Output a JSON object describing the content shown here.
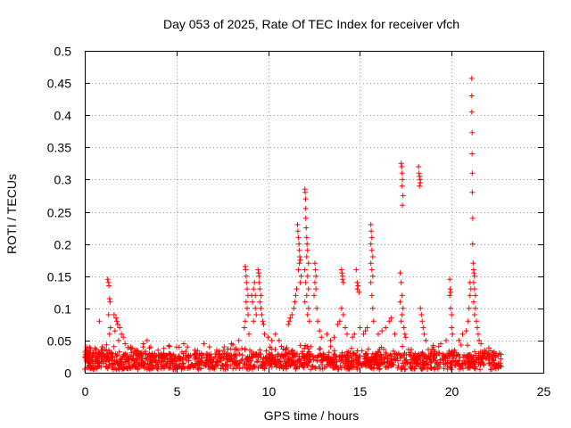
{
  "chart_data": {
    "type": "scatter",
    "title": "Day 053 of 2025, Rate Of TEC Index for receiver vfch",
    "xlabel": "GPS time / hours",
    "ylabel": "ROTI / TECUs",
    "xlim": [
      0,
      25
    ],
    "ylim": [
      0,
      0.5
    ],
    "xticks": [
      0,
      5,
      10,
      15,
      20,
      25
    ],
    "xtick_labels": [
      "0",
      "5",
      "10",
      "15",
      "20",
      "25"
    ],
    "yticks": [
      0,
      0.05,
      0.1,
      0.15,
      0.2,
      0.25,
      0.3,
      0.35,
      0.4,
      0.45,
      0.5
    ],
    "ytick_labels": [
      "0",
      "0.05",
      "0.1",
      "0.15",
      "0.2",
      "0.25",
      "0.3",
      "0.35",
      "0.4",
      "0.45",
      "0.5"
    ],
    "grid": true,
    "marker": "+",
    "series_color": "#ff0000",
    "baseline": {
      "x_range": [
        0.0,
        22.7
      ],
      "typical_range": [
        0.005,
        0.03
      ]
    },
    "series": [
      {
        "name": "ROTI",
        "points": [
          [
            0.1,
            0.04
          ],
          [
            0.15,
            0.035
          ],
          [
            0.2,
            0.03
          ],
          [
            0.3,
            0.038
          ],
          [
            0.05,
            0.028
          ],
          [
            0.6,
            0.03
          ],
          [
            0.9,
            0.035
          ],
          [
            1.0,
            0.028
          ],
          [
            0.8,
            0.08
          ],
          [
            1.25,
            0.145
          ],
          [
            1.3,
            0.14
          ],
          [
            1.32,
            0.135
          ],
          [
            1.35,
            0.115
          ],
          [
            1.38,
            0.11
          ],
          [
            1.3,
            0.09
          ],
          [
            1.4,
            0.07
          ],
          [
            1.35,
            0.06
          ],
          [
            1.6,
            0.09
          ],
          [
            1.7,
            0.085
          ],
          [
            1.75,
            0.08
          ],
          [
            1.8,
            0.075
          ],
          [
            1.9,
            0.07
          ],
          [
            1.65,
            0.065
          ],
          [
            2.0,
            0.06
          ],
          [
            2.1,
            0.055
          ],
          [
            1.85,
            0.05
          ],
          [
            2.2,
            0.045
          ],
          [
            2.5,
            0.04
          ],
          [
            2.8,
            0.035
          ],
          [
            3.2,
            0.045
          ],
          [
            3.4,
            0.05
          ],
          [
            3.0,
            0.03
          ],
          [
            3.6,
            0.04
          ],
          [
            4.0,
            0.035
          ],
          [
            4.3,
            0.03
          ],
          [
            5.4,
            0.045
          ],
          [
            5.6,
            0.04
          ],
          [
            6.0,
            0.035
          ],
          [
            6.5,
            0.045
          ],
          [
            6.8,
            0.04
          ],
          [
            7.2,
            0.035
          ],
          [
            7.6,
            0.04
          ],
          [
            8.0,
            0.045
          ],
          [
            8.4,
            0.05
          ],
          [
            8.75,
            0.165
          ],
          [
            8.78,
            0.16
          ],
          [
            8.8,
            0.15
          ],
          [
            8.82,
            0.14
          ],
          [
            8.85,
            0.13
          ],
          [
            8.9,
            0.12
          ],
          [
            8.8,
            0.11
          ],
          [
            8.85,
            0.1
          ],
          [
            8.9,
            0.09
          ],
          [
            8.75,
            0.08
          ],
          [
            8.7,
            0.07
          ],
          [
            8.95,
            0.06
          ],
          [
            9.1,
            0.12
          ],
          [
            9.15,
            0.11
          ],
          [
            9.2,
            0.13
          ],
          [
            9.25,
            0.14
          ],
          [
            9.3,
            0.12
          ],
          [
            9.3,
            0.1
          ],
          [
            9.35,
            0.09
          ],
          [
            9.2,
            0.08
          ],
          [
            9.45,
            0.16
          ],
          [
            9.48,
            0.155
          ],
          [
            9.5,
            0.15
          ],
          [
            9.5,
            0.14
          ],
          [
            9.55,
            0.13
          ],
          [
            9.6,
            0.12
          ],
          [
            9.55,
            0.11
          ],
          [
            9.6,
            0.1
          ],
          [
            9.65,
            0.09
          ],
          [
            9.7,
            0.08
          ],
          [
            9.75,
            0.075
          ],
          [
            9.8,
            0.06
          ],
          [
            10.0,
            0.055
          ],
          [
            10.2,
            0.05
          ],
          [
            10.4,
            0.06
          ],
          [
            10.6,
            0.05
          ],
          [
            11.1,
            0.075
          ],
          [
            11.15,
            0.08
          ],
          [
            11.2,
            0.085
          ],
          [
            11.3,
            0.09
          ],
          [
            11.4,
            0.1
          ],
          [
            11.45,
            0.11
          ],
          [
            11.5,
            0.12
          ],
          [
            11.55,
            0.13
          ],
          [
            11.6,
            0.23
          ],
          [
            11.62,
            0.22
          ],
          [
            11.65,
            0.21
          ],
          [
            11.68,
            0.2
          ],
          [
            11.7,
            0.19
          ],
          [
            11.72,
            0.18
          ],
          [
            11.75,
            0.175
          ],
          [
            11.7,
            0.17
          ],
          [
            11.65,
            0.16
          ],
          [
            11.8,
            0.15
          ],
          [
            11.75,
            0.14
          ],
          [
            12.0,
            0.285
          ],
          [
            12.02,
            0.28
          ],
          [
            12.04,
            0.27
          ],
          [
            12.05,
            0.255
          ],
          [
            12.05,
            0.24
          ],
          [
            12.07,
            0.225
          ],
          [
            12.1,
            0.21
          ],
          [
            12.12,
            0.2
          ],
          [
            12.15,
            0.19
          ],
          [
            12.1,
            0.18
          ],
          [
            12.2,
            0.17
          ],
          [
            12.0,
            0.16
          ],
          [
            12.15,
            0.15
          ],
          [
            12.05,
            0.14
          ],
          [
            12.2,
            0.13
          ],
          [
            12.1,
            0.12
          ],
          [
            12.0,
            0.11
          ],
          [
            12.2,
            0.1
          ],
          [
            12.15,
            0.09
          ],
          [
            12.25,
            0.08
          ],
          [
            12.55,
            0.17
          ],
          [
            12.58,
            0.16
          ],
          [
            12.6,
            0.15
          ],
          [
            12.55,
            0.14
          ],
          [
            12.6,
            0.13
          ],
          [
            12.5,
            0.12
          ],
          [
            12.65,
            0.1
          ],
          [
            12.7,
            0.08
          ],
          [
            12.8,
            0.065
          ],
          [
            12.9,
            0.055
          ],
          [
            13.2,
            0.06
          ],
          [
            13.4,
            0.05
          ],
          [
            13.6,
            0.055
          ],
          [
            13.8,
            0.075
          ],
          [
            13.9,
            0.08
          ],
          [
            14.0,
            0.16
          ],
          [
            14.02,
            0.155
          ],
          [
            14.05,
            0.15
          ],
          [
            14.05,
            0.145
          ],
          [
            14.1,
            0.14
          ],
          [
            14.0,
            0.1
          ],
          [
            14.1,
            0.09
          ],
          [
            14.2,
            0.07
          ],
          [
            14.3,
            0.06
          ],
          [
            14.6,
            0.055
          ],
          [
            14.7,
            0.06
          ],
          [
            14.8,
            0.16
          ],
          [
            14.85,
            0.14
          ],
          [
            14.9,
            0.135
          ],
          [
            14.85,
            0.13
          ],
          [
            14.95,
            0.125
          ],
          [
            15.0,
            0.07
          ],
          [
            15.2,
            0.06
          ],
          [
            15.3,
            0.065
          ],
          [
            15.4,
            0.07
          ],
          [
            15.6,
            0.23
          ],
          [
            15.62,
            0.22
          ],
          [
            15.65,
            0.21
          ],
          [
            15.6,
            0.2
          ],
          [
            15.65,
            0.19
          ],
          [
            15.7,
            0.18
          ],
          [
            15.6,
            0.17
          ],
          [
            15.65,
            0.16
          ],
          [
            15.7,
            0.15
          ],
          [
            15.6,
            0.14
          ],
          [
            15.65,
            0.12
          ],
          [
            15.7,
            0.1
          ],
          [
            15.75,
            0.08
          ],
          [
            16.0,
            0.06
          ],
          [
            16.2,
            0.065
          ],
          [
            16.4,
            0.07
          ],
          [
            16.6,
            0.08
          ],
          [
            16.7,
            0.085
          ],
          [
            16.9,
            0.06
          ],
          [
            17.25,
            0.325
          ],
          [
            17.28,
            0.32
          ],
          [
            17.3,
            0.31
          ],
          [
            17.32,
            0.3
          ],
          [
            17.3,
            0.29
          ],
          [
            17.35,
            0.275
          ],
          [
            17.32,
            0.26
          ],
          [
            17.2,
            0.155
          ],
          [
            17.25,
            0.14
          ],
          [
            17.3,
            0.12
          ],
          [
            17.2,
            0.11
          ],
          [
            17.35,
            0.1
          ],
          [
            17.3,
            0.09
          ],
          [
            17.25,
            0.08
          ],
          [
            17.4,
            0.07
          ],
          [
            17.45,
            0.06
          ],
          [
            17.5,
            0.055
          ],
          [
            18.2,
            0.32
          ],
          [
            18.22,
            0.31
          ],
          [
            18.25,
            0.305
          ],
          [
            18.28,
            0.3
          ],
          [
            18.3,
            0.295
          ],
          [
            18.25,
            0.29
          ],
          [
            18.3,
            0.1
          ],
          [
            18.35,
            0.09
          ],
          [
            18.4,
            0.08
          ],
          [
            18.45,
            0.07
          ],
          [
            18.5,
            0.06
          ],
          [
            18.6,
            0.05
          ],
          [
            19.0,
            0.04
          ],
          [
            19.4,
            0.045
          ],
          [
            19.7,
            0.05
          ],
          [
            19.9,
            0.145
          ],
          [
            19.92,
            0.13
          ],
          [
            19.95,
            0.125
          ],
          [
            19.9,
            0.12
          ],
          [
            19.95,
            0.1
          ],
          [
            20.0,
            0.09
          ],
          [
            20.0,
            0.07
          ],
          [
            20.05,
            0.06
          ],
          [
            20.4,
            0.05
          ],
          [
            20.6,
            0.06
          ],
          [
            20.8,
            0.065
          ],
          [
            20.9,
            0.08
          ],
          [
            20.95,
            0.1
          ],
          [
            21.0,
            0.12
          ],
          [
            21.05,
            0.13
          ],
          [
            21.0,
            0.14
          ],
          [
            21.1,
            0.457
          ],
          [
            21.1,
            0.43
          ],
          [
            21.1,
            0.405
          ],
          [
            21.12,
            0.373
          ],
          [
            21.12,
            0.34
          ],
          [
            21.13,
            0.31
          ],
          [
            21.13,
            0.28
          ],
          [
            21.15,
            0.24
          ],
          [
            21.15,
            0.2
          ],
          [
            21.17,
            0.17
          ],
          [
            21.2,
            0.16
          ],
          [
            21.22,
            0.155
          ],
          [
            21.25,
            0.15
          ],
          [
            21.2,
            0.14
          ],
          [
            21.25,
            0.13
          ],
          [
            21.3,
            0.12
          ],
          [
            21.2,
            0.11
          ],
          [
            21.3,
            0.1
          ],
          [
            21.25,
            0.09
          ],
          [
            21.35,
            0.08
          ],
          [
            21.4,
            0.07
          ],
          [
            21.45,
            0.06
          ],
          [
            21.5,
            0.05
          ],
          [
            21.6,
            0.045
          ],
          [
            21.8,
            0.035
          ],
          [
            22.0,
            0.03
          ],
          [
            22.3,
            0.025
          ],
          [
            22.6,
            0.03
          ]
        ]
      }
    ]
  }
}
